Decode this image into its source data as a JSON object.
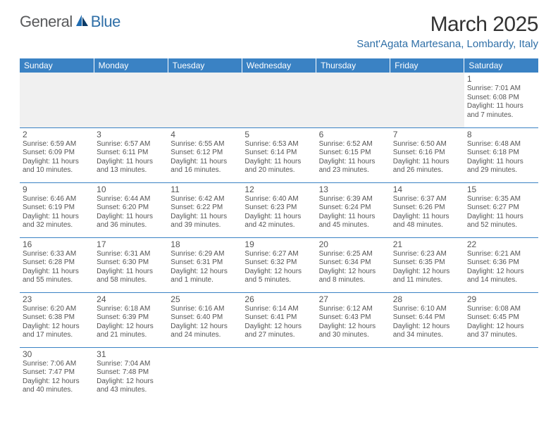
{
  "brand": {
    "part1": "General",
    "part2": "Blue",
    "logo_accent": "#1f6bb0",
    "logo_dark": "#0b3a66"
  },
  "title": "March 2025",
  "location": "Sant'Agata Martesana, Lombardy, Italy",
  "colors": {
    "header_bg": "#3a82c4",
    "header_text": "#ffffff",
    "cell_border": "#3a82c4",
    "text": "#555555",
    "title_text": "#333333",
    "location_text": "#2f6fa7",
    "empty_row_bg": "#f0f0f0"
  },
  "day_headers": [
    "Sunday",
    "Monday",
    "Tuesday",
    "Wednesday",
    "Thursday",
    "Friday",
    "Saturday"
  ],
  "weeks": [
    [
      null,
      null,
      null,
      null,
      null,
      null,
      {
        "n": "1",
        "sr": "Sunrise: 7:01 AM",
        "ss": "Sunset: 6:08 PM",
        "dl": "Daylight: 11 hours and 7 minutes."
      }
    ],
    [
      {
        "n": "2",
        "sr": "Sunrise: 6:59 AM",
        "ss": "Sunset: 6:09 PM",
        "dl": "Daylight: 11 hours and 10 minutes."
      },
      {
        "n": "3",
        "sr": "Sunrise: 6:57 AM",
        "ss": "Sunset: 6:11 PM",
        "dl": "Daylight: 11 hours and 13 minutes."
      },
      {
        "n": "4",
        "sr": "Sunrise: 6:55 AM",
        "ss": "Sunset: 6:12 PM",
        "dl": "Daylight: 11 hours and 16 minutes."
      },
      {
        "n": "5",
        "sr": "Sunrise: 6:53 AM",
        "ss": "Sunset: 6:14 PM",
        "dl": "Daylight: 11 hours and 20 minutes."
      },
      {
        "n": "6",
        "sr": "Sunrise: 6:52 AM",
        "ss": "Sunset: 6:15 PM",
        "dl": "Daylight: 11 hours and 23 minutes."
      },
      {
        "n": "7",
        "sr": "Sunrise: 6:50 AM",
        "ss": "Sunset: 6:16 PM",
        "dl": "Daylight: 11 hours and 26 minutes."
      },
      {
        "n": "8",
        "sr": "Sunrise: 6:48 AM",
        "ss": "Sunset: 6:18 PM",
        "dl": "Daylight: 11 hours and 29 minutes."
      }
    ],
    [
      {
        "n": "9",
        "sr": "Sunrise: 6:46 AM",
        "ss": "Sunset: 6:19 PM",
        "dl": "Daylight: 11 hours and 32 minutes."
      },
      {
        "n": "10",
        "sr": "Sunrise: 6:44 AM",
        "ss": "Sunset: 6:20 PM",
        "dl": "Daylight: 11 hours and 36 minutes."
      },
      {
        "n": "11",
        "sr": "Sunrise: 6:42 AM",
        "ss": "Sunset: 6:22 PM",
        "dl": "Daylight: 11 hours and 39 minutes."
      },
      {
        "n": "12",
        "sr": "Sunrise: 6:40 AM",
        "ss": "Sunset: 6:23 PM",
        "dl": "Daylight: 11 hours and 42 minutes."
      },
      {
        "n": "13",
        "sr": "Sunrise: 6:39 AM",
        "ss": "Sunset: 6:24 PM",
        "dl": "Daylight: 11 hours and 45 minutes."
      },
      {
        "n": "14",
        "sr": "Sunrise: 6:37 AM",
        "ss": "Sunset: 6:26 PM",
        "dl": "Daylight: 11 hours and 48 minutes."
      },
      {
        "n": "15",
        "sr": "Sunrise: 6:35 AM",
        "ss": "Sunset: 6:27 PM",
        "dl": "Daylight: 11 hours and 52 minutes."
      }
    ],
    [
      {
        "n": "16",
        "sr": "Sunrise: 6:33 AM",
        "ss": "Sunset: 6:28 PM",
        "dl": "Daylight: 11 hours and 55 minutes."
      },
      {
        "n": "17",
        "sr": "Sunrise: 6:31 AM",
        "ss": "Sunset: 6:30 PM",
        "dl": "Daylight: 11 hours and 58 minutes."
      },
      {
        "n": "18",
        "sr": "Sunrise: 6:29 AM",
        "ss": "Sunset: 6:31 PM",
        "dl": "Daylight: 12 hours and 1 minute."
      },
      {
        "n": "19",
        "sr": "Sunrise: 6:27 AM",
        "ss": "Sunset: 6:32 PM",
        "dl": "Daylight: 12 hours and 5 minutes."
      },
      {
        "n": "20",
        "sr": "Sunrise: 6:25 AM",
        "ss": "Sunset: 6:34 PM",
        "dl": "Daylight: 12 hours and 8 minutes."
      },
      {
        "n": "21",
        "sr": "Sunrise: 6:23 AM",
        "ss": "Sunset: 6:35 PM",
        "dl": "Daylight: 12 hours and 11 minutes."
      },
      {
        "n": "22",
        "sr": "Sunrise: 6:21 AM",
        "ss": "Sunset: 6:36 PM",
        "dl": "Daylight: 12 hours and 14 minutes."
      }
    ],
    [
      {
        "n": "23",
        "sr": "Sunrise: 6:20 AM",
        "ss": "Sunset: 6:38 PM",
        "dl": "Daylight: 12 hours and 17 minutes."
      },
      {
        "n": "24",
        "sr": "Sunrise: 6:18 AM",
        "ss": "Sunset: 6:39 PM",
        "dl": "Daylight: 12 hours and 21 minutes."
      },
      {
        "n": "25",
        "sr": "Sunrise: 6:16 AM",
        "ss": "Sunset: 6:40 PM",
        "dl": "Daylight: 12 hours and 24 minutes."
      },
      {
        "n": "26",
        "sr": "Sunrise: 6:14 AM",
        "ss": "Sunset: 6:41 PM",
        "dl": "Daylight: 12 hours and 27 minutes."
      },
      {
        "n": "27",
        "sr": "Sunrise: 6:12 AM",
        "ss": "Sunset: 6:43 PM",
        "dl": "Daylight: 12 hours and 30 minutes."
      },
      {
        "n": "28",
        "sr": "Sunrise: 6:10 AM",
        "ss": "Sunset: 6:44 PM",
        "dl": "Daylight: 12 hours and 34 minutes."
      },
      {
        "n": "29",
        "sr": "Sunrise: 6:08 AM",
        "ss": "Sunset: 6:45 PM",
        "dl": "Daylight: 12 hours and 37 minutes."
      }
    ],
    [
      {
        "n": "30",
        "sr": "Sunrise: 7:06 AM",
        "ss": "Sunset: 7:47 PM",
        "dl": "Daylight: 12 hours and 40 minutes."
      },
      {
        "n": "31",
        "sr": "Sunrise: 7:04 AM",
        "ss": "Sunset: 7:48 PM",
        "dl": "Daylight: 12 hours and 43 minutes."
      },
      null,
      null,
      null,
      null,
      null
    ]
  ]
}
